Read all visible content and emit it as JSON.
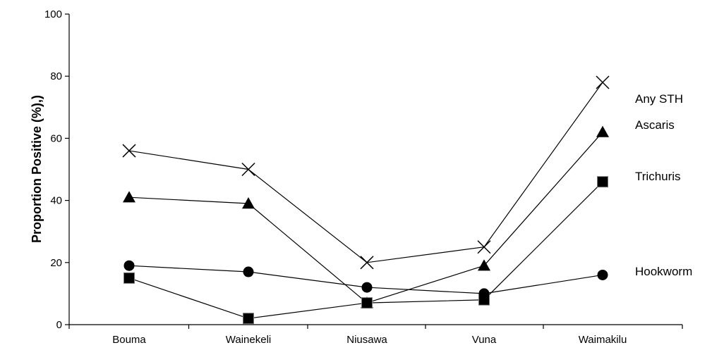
{
  "chart_data": {
    "type": "line",
    "title": "",
    "xlabel": "",
    "ylabel": "Proportion Positive (%),)",
    "ylim": [
      0,
      100
    ],
    "yticks": [
      0,
      20,
      40,
      60,
      80,
      100
    ],
    "categories": [
      "Bouma",
      "Wainekeli",
      "Niusawa",
      "Vuna",
      "Waimakilu"
    ],
    "grid": false,
    "legend": "right-side inline labels",
    "series": [
      {
        "name": "Any STH",
        "marker": "x-icon",
        "values": [
          56,
          50,
          20,
          25,
          78
        ]
      },
      {
        "name": "Ascaris",
        "marker": "triangle-icon",
        "values": [
          41,
          39,
          7,
          19,
          62
        ]
      },
      {
        "name": "Trichuris",
        "marker": "square-icon",
        "values": [
          15,
          2,
          7,
          8,
          46
        ]
      },
      {
        "name": "Hookworm",
        "marker": "circle-icon",
        "values": [
          19,
          17,
          12,
          10,
          16
        ]
      }
    ]
  }
}
